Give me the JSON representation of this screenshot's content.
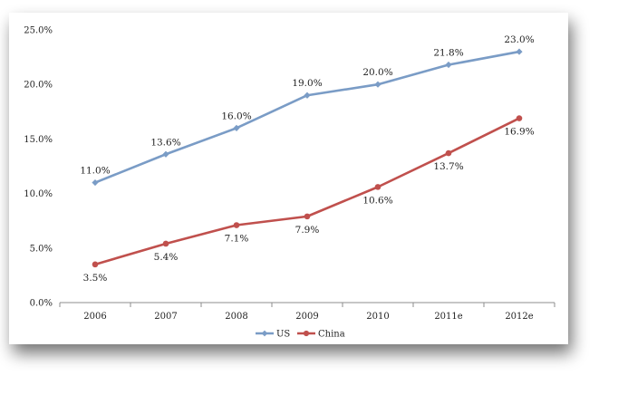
{
  "chart_data": {
    "type": "line",
    "categories": [
      "2006",
      "2007",
      "2008",
      "2009",
      "2010",
      "2011e",
      "2012e"
    ],
    "series": [
      {
        "name": "US",
        "values": [
          11.0,
          13.6,
          16.0,
          19.0,
          20.0,
          21.8,
          23.0
        ],
        "labels": [
          "11.0%",
          "13.6%",
          "16.0%",
          "19.0%",
          "20.0%",
          "21.8%",
          "23.0%"
        ],
        "color": "#7a9cc6",
        "marker": "diamond"
      },
      {
        "name": "China",
        "values": [
          3.5,
          5.4,
          7.1,
          7.9,
          10.6,
          13.7,
          16.9
        ],
        "labels": [
          "3.5%",
          "5.4%",
          "7.1%",
          "7.9%",
          "10.6%",
          "13.7%",
          "16.9%"
        ],
        "color": "#c0504d",
        "marker": "circle"
      }
    ],
    "yticks": [
      "0.0%",
      "5.0%",
      "10.0%",
      "15.0%",
      "20.0%",
      "25.0%"
    ],
    "ylim": [
      0,
      25
    ],
    "ytick_step": 5,
    "legend_position": "bottom-center",
    "grid": false,
    "frame": "drop-shadow"
  }
}
